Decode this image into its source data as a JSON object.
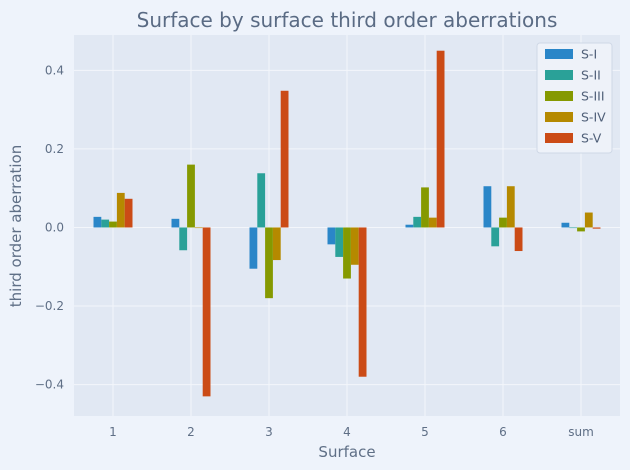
{
  "chart_data": {
    "type": "bar",
    "title": "Surface by surface third order aberrations",
    "xlabel": "Surface",
    "ylabel": "third order aberration",
    "categories": [
      "1",
      "2",
      "3",
      "4",
      "5",
      "6",
      "sum"
    ],
    "ylim": [
      -0.48,
      0.49
    ],
    "yticks": [
      -0.4,
      -0.2,
      0.0,
      0.2,
      0.4
    ],
    "ytick_labels": [
      "−0.4",
      "−0.2",
      "0.0",
      "0.2",
      "0.4"
    ],
    "grid": true,
    "legend_position": "top-right",
    "series": [
      {
        "name": "S-I",
        "color": "#2a86c8",
        "values": [
          0.027,
          0.022,
          -0.105,
          -0.043,
          0.007,
          0.105,
          0.012
        ]
      },
      {
        "name": "S-II",
        "color": "#2aa198",
        "values": [
          0.02,
          -0.058,
          0.138,
          -0.075,
          0.027,
          -0.048,
          0.0
        ]
      },
      {
        "name": "S-III",
        "color": "#859900",
        "values": [
          0.015,
          0.16,
          -0.18,
          -0.13,
          0.102,
          0.025,
          -0.01
        ]
      },
      {
        "name": "S-IV",
        "color": "#b58900",
        "values": [
          0.088,
          0.0,
          -0.083,
          -0.095,
          0.025,
          0.105,
          0.038
        ]
      },
      {
        "name": "S-V",
        "color": "#cb4b16",
        "values": [
          0.073,
          -0.43,
          0.348,
          -0.38,
          0.45,
          -0.06,
          -0.003
        ]
      }
    ]
  }
}
